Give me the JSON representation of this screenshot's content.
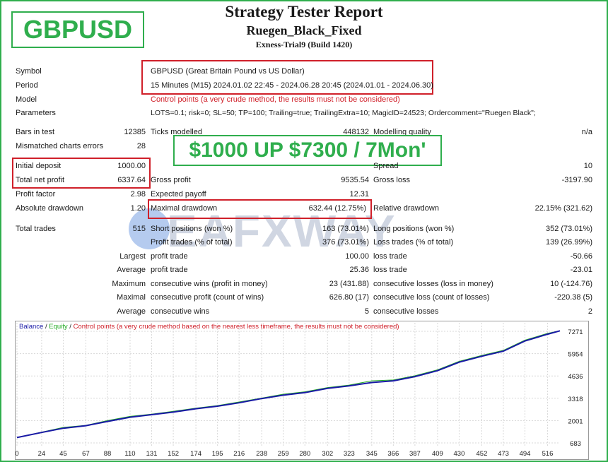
{
  "header": {
    "title": "Strategy Tester Report",
    "subtitle": "Ruegen_Black_Fixed",
    "build": "Exness-Trial9 (Build 1420)",
    "pair_badge": "GBPUSD",
    "promo": "$1000 UP $7300 / 7Mon'",
    "watermark": "EAFXWAY"
  },
  "info": {
    "symbol_label": "Symbol",
    "symbol_value": "GBPUSD (Great Britain Pound vs US Dollar)",
    "period_label": "Period",
    "period_value": "15 Minutes (M15) 2024.01.02 22:45 - 2024.06.28 20:45 (2024.01.01 - 2024.06.30)",
    "model_label": "Model",
    "model_value": "Control points (a very crude method, the results must not be considered)",
    "params_label": "Parameters",
    "params_value": "LOTS=0.1; risk=0; SL=50; TP=100; Trailing=true; TrailingExtra=10; MagicID=24523; Ordercomment=\"Ruegen Black\";"
  },
  "stats": {
    "bars_label": "Bars in test",
    "bars_value": "12385",
    "ticks_label": "Ticks modelled",
    "ticks_value": "448132",
    "quality_label": "Modelling quality",
    "quality_value": "n/a",
    "mismatch_label": "Mismatched charts errors",
    "mismatch_value": "28",
    "deposit_label": "Initial deposit",
    "deposit_value": "1000.00",
    "spread_label": "Spread",
    "spread_value": "10",
    "netprofit_label": "Total net profit",
    "netprofit_value": "6337.64",
    "grossprofit_label": "Gross profit",
    "grossprofit_value": "9535.54",
    "grossloss_label": "Gross loss",
    "grossloss_value": "-3197.90",
    "pf_label": "Profit factor",
    "pf_value": "2.98",
    "payoff_label": "Expected payoff",
    "payoff_value": "12.31",
    "absdd_label": "Absolute drawdown",
    "absdd_value": "1.20",
    "maxdd_label": "Maximal drawdown",
    "maxdd_value": "632.44 (12.75%)",
    "reldd_label": "Relative drawdown",
    "reldd_value": "22.15% (321.62)",
    "trades_label": "Total trades",
    "trades_value": "515",
    "short_label": "Short positions (won %)",
    "short_value": "163 (73.01%)",
    "long_label": "Long positions (won %)",
    "long_value": "352 (73.01%)",
    "profittrades_label": "Profit trades (% of total)",
    "profittrades_value": "376 (73.01%)",
    "losstrades_label": "Loss trades (% of total)",
    "losstrades_value": "139 (26.99%)",
    "largest_label": "Largest",
    "largest_pt_label": "profit trade",
    "largest_pt_value": "100.00",
    "largest_lt_label": "loss trade",
    "largest_lt_value": "-50.66",
    "average_label": "Average",
    "average_pt_label": "profit trade",
    "average_pt_value": "25.36",
    "average_lt_label": "loss trade",
    "average_lt_value": "-23.01",
    "maximum_label": "Maximum",
    "max_cw_label": "consecutive wins (profit in money)",
    "max_cw_value": "23 (431.88)",
    "max_cl_label": "consecutive losses (loss in money)",
    "max_cl_value": "10 (-124.76)",
    "maximal_label": "Maximal",
    "maximal_cp_label": "consecutive profit (count of wins)",
    "maximal_cp_value": "626.80 (17)",
    "maximal_cl_label": "consecutive loss (count of losses)",
    "maximal_cl_value": "-220.38 (5)",
    "avg_label": "Average",
    "avg_cw_label": "consecutive wins",
    "avg_cw_value": "5",
    "avg_cl_label": "consecutive losses",
    "avg_cl_value": "2"
  },
  "chart_legend": {
    "balance": "Balance",
    "sep1": " / ",
    "equity": "Equity",
    "sep2": " / ",
    "note": "Control points (a very crude method based on the nearest less timeframe, the results must not be considered)"
  },
  "colors": {
    "green": "#2fae4d",
    "red": "#d0202a",
    "balance": "#1a1aa6",
    "equity": "#22aa22"
  },
  "chart_data": {
    "type": "line",
    "series": [
      {
        "name": "Balance",
        "x": [
          0,
          24,
          45,
          67,
          88,
          110,
          131,
          152,
          174,
          195,
          216,
          238,
          259,
          280,
          302,
          323,
          345,
          366,
          387,
          409,
          430,
          452,
          473,
          494,
          516,
          528
        ],
        "values": [
          1000,
          1300,
          1550,
          1700,
          1950,
          2200,
          2350,
          2500,
          2700,
          2850,
          3050,
          3300,
          3500,
          3650,
          3900,
          4050,
          4250,
          4350,
          4600,
          4950,
          5450,
          5800,
          6100,
          6700,
          7100,
          7300
        ]
      },
      {
        "name": "Equity",
        "x": [
          0,
          24,
          45,
          67,
          88,
          110,
          131,
          152,
          174,
          195,
          216,
          238,
          259,
          280,
          302,
          323,
          345,
          366,
          387,
          409,
          430,
          452,
          473,
          494,
          516,
          528
        ],
        "values": [
          1000,
          1320,
          1600,
          1720,
          2000,
          2250,
          2380,
          2550,
          2740,
          2890,
          3100,
          3330,
          3560,
          3700,
          3950,
          4100,
          4350,
          4400,
          4650,
          5000,
          5500,
          5850,
          6150,
          6750,
          7150,
          7300
        ]
      }
    ],
    "xticks": [
      "0",
      "24",
      "45",
      "67",
      "88",
      "110",
      "131",
      "152",
      "174",
      "195",
      "216",
      "238",
      "259",
      "280",
      "302",
      "323",
      "345",
      "366",
      "387",
      "409",
      "430",
      "452",
      "473",
      "494",
      "516"
    ],
    "yticks": [
      "7271",
      "5954",
      "4636",
      "3318",
      "2001",
      "683"
    ],
    "ylim": [
      683,
      7271
    ]
  }
}
